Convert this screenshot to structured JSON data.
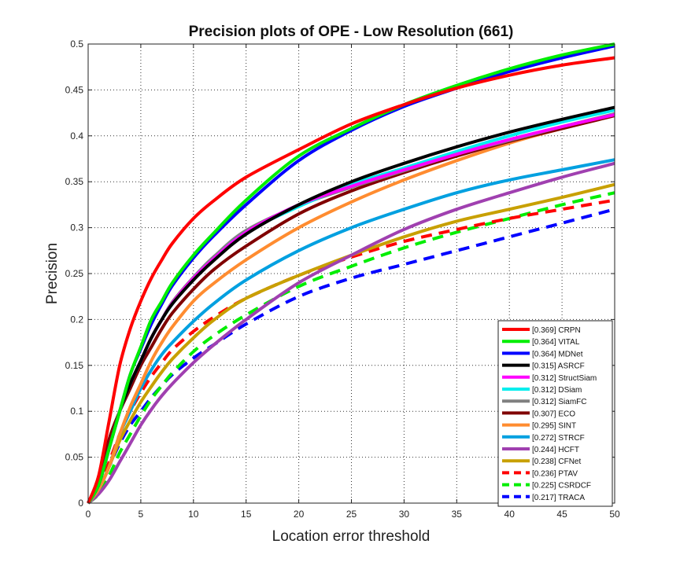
{
  "chart_data": {
    "type": "line",
    "title": "Precision plots of OPE - Low Resolution (661)",
    "xlabel": "Location error threshold",
    "ylabel": "Precision",
    "xlim": [
      0,
      50
    ],
    "ylim": [
      0,
      0.5
    ],
    "xticks": [
      "0",
      "5",
      "10",
      "15",
      "20",
      "25",
      "30",
      "35",
      "40",
      "45",
      "50"
    ],
    "yticks": [
      "0",
      "0.05",
      "0.1",
      "0.15",
      "0.2",
      "0.25",
      "0.3",
      "0.35",
      "0.4",
      "0.45",
      "0.5"
    ],
    "grid": true,
    "legend_position": "bottom-right",
    "x": [
      0,
      1,
      2,
      3,
      4,
      5,
      6,
      7,
      8,
      10,
      12,
      15,
      20,
      25,
      30,
      35,
      40,
      45,
      50
    ],
    "series": [
      {
        "name": "[0.369] CRPN",
        "color": "#ff0000",
        "dash": false,
        "values": [
          0,
          0.03,
          0.09,
          0.15,
          0.19,
          0.22,
          0.245,
          0.265,
          0.283,
          0.31,
          0.33,
          0.355,
          0.385,
          0.413,
          0.434,
          0.452,
          0.466,
          0.477,
          0.485
        ]
      },
      {
        "name": "[0.364] VITAL",
        "color": "#00ee00",
        "dash": false,
        "values": [
          0,
          0.02,
          0.06,
          0.1,
          0.14,
          0.17,
          0.2,
          0.22,
          0.24,
          0.27,
          0.295,
          0.33,
          0.378,
          0.408,
          0.434,
          0.455,
          0.473,
          0.488,
          0.5
        ]
      },
      {
        "name": "[0.364] MDNet",
        "color": "#0000ff",
        "dash": false,
        "values": [
          0,
          0.02,
          0.06,
          0.1,
          0.14,
          0.168,
          0.195,
          0.217,
          0.237,
          0.267,
          0.292,
          0.325,
          0.373,
          0.406,
          0.432,
          0.452,
          0.47,
          0.485,
          0.498
        ]
      },
      {
        "name": "[0.315] ASRCF",
        "color": "#000000",
        "dash": false,
        "values": [
          0,
          0.02,
          0.06,
          0.1,
          0.13,
          0.155,
          0.18,
          0.2,
          0.217,
          0.243,
          0.265,
          0.293,
          0.325,
          0.35,
          0.37,
          0.388,
          0.404,
          0.418,
          0.431
        ]
      },
      {
        "name": "[0.312] StructSiam",
        "color": "#ff00ff",
        "dash": false,
        "values": [
          0,
          0.02,
          0.06,
          0.1,
          0.13,
          0.155,
          0.18,
          0.2,
          0.218,
          0.245,
          0.267,
          0.295,
          0.325,
          0.345,
          0.363,
          0.38,
          0.396,
          0.41,
          0.423
        ]
      },
      {
        "name": "[0.312] DSiam",
        "color": "#00eeee",
        "dash": false,
        "values": [
          0,
          0.02,
          0.06,
          0.1,
          0.13,
          0.155,
          0.18,
          0.2,
          0.217,
          0.245,
          0.267,
          0.295,
          0.323,
          0.347,
          0.365,
          0.383,
          0.4,
          0.415,
          0.428
        ]
      },
      {
        "name": "[0.312] SiamFC",
        "color": "#808080",
        "dash": false,
        "values": [
          0,
          0.02,
          0.06,
          0.1,
          0.13,
          0.155,
          0.18,
          0.2,
          0.219,
          0.246,
          0.269,
          0.297,
          0.324,
          0.344,
          0.362,
          0.38,
          0.395,
          0.41,
          0.424
        ]
      },
      {
        "name": "[0.307] ECO",
        "color": "#800000",
        "dash": false,
        "values": [
          0,
          0.025,
          0.07,
          0.1,
          0.125,
          0.15,
          0.17,
          0.19,
          0.207,
          0.233,
          0.255,
          0.28,
          0.315,
          0.34,
          0.36,
          0.378,
          0.394,
          0.408,
          0.422
        ]
      },
      {
        "name": "[0.295] SINT",
        "color": "#ff8c30",
        "dash": false,
        "values": [
          0,
          0.015,
          0.04,
          0.075,
          0.105,
          0.13,
          0.155,
          0.175,
          0.192,
          0.22,
          0.24,
          0.265,
          0.3,
          0.328,
          0.352,
          0.373,
          0.392,
          0.408,
          0.422
        ]
      },
      {
        "name": "[0.272] STRCF",
        "color": "#00a0e0",
        "dash": false,
        "values": [
          0,
          0.015,
          0.04,
          0.075,
          0.1,
          0.125,
          0.145,
          0.162,
          0.175,
          0.198,
          0.218,
          0.243,
          0.275,
          0.3,
          0.32,
          0.338,
          0.352,
          0.363,
          0.374
        ]
      },
      {
        "name": "[0.244] HCFT",
        "color": "#a040b0",
        "dash": false,
        "values": [
          0,
          0.01,
          0.025,
          0.045,
          0.065,
          0.085,
          0.102,
          0.117,
          0.13,
          0.153,
          0.173,
          0.2,
          0.24,
          0.27,
          0.298,
          0.32,
          0.338,
          0.355,
          0.37
        ]
      },
      {
        "name": "[0.238] CFNet",
        "color": "#c8a000",
        "dash": false,
        "values": [
          0,
          0.015,
          0.04,
          0.068,
          0.09,
          0.11,
          0.127,
          0.143,
          0.157,
          0.18,
          0.2,
          0.223,
          0.248,
          0.27,
          0.29,
          0.307,
          0.32,
          0.333,
          0.347
        ]
      },
      {
        "name": "[0.236] PTAV",
        "color": "#ff0000",
        "dash": true,
        "values": [
          0,
          0.015,
          0.045,
          0.075,
          0.1,
          0.12,
          0.138,
          0.153,
          0.167,
          0.187,
          0.203,
          0.223,
          0.248,
          0.268,
          0.285,
          0.298,
          0.31,
          0.32,
          0.33
        ]
      },
      {
        "name": "[0.225] CSRDCF",
        "color": "#00ee00",
        "dash": true,
        "values": [
          0,
          0.01,
          0.03,
          0.055,
          0.075,
          0.095,
          0.113,
          0.128,
          0.142,
          0.165,
          0.183,
          0.205,
          0.236,
          0.258,
          0.278,
          0.295,
          0.31,
          0.325,
          0.338
        ]
      },
      {
        "name": "[0.217] TRACA",
        "color": "#0000ff",
        "dash": true,
        "values": [
          0,
          0.015,
          0.04,
          0.065,
          0.085,
          0.1,
          0.115,
          0.128,
          0.14,
          0.158,
          0.173,
          0.195,
          0.225,
          0.245,
          0.26,
          0.275,
          0.29,
          0.305,
          0.32
        ]
      }
    ]
  }
}
